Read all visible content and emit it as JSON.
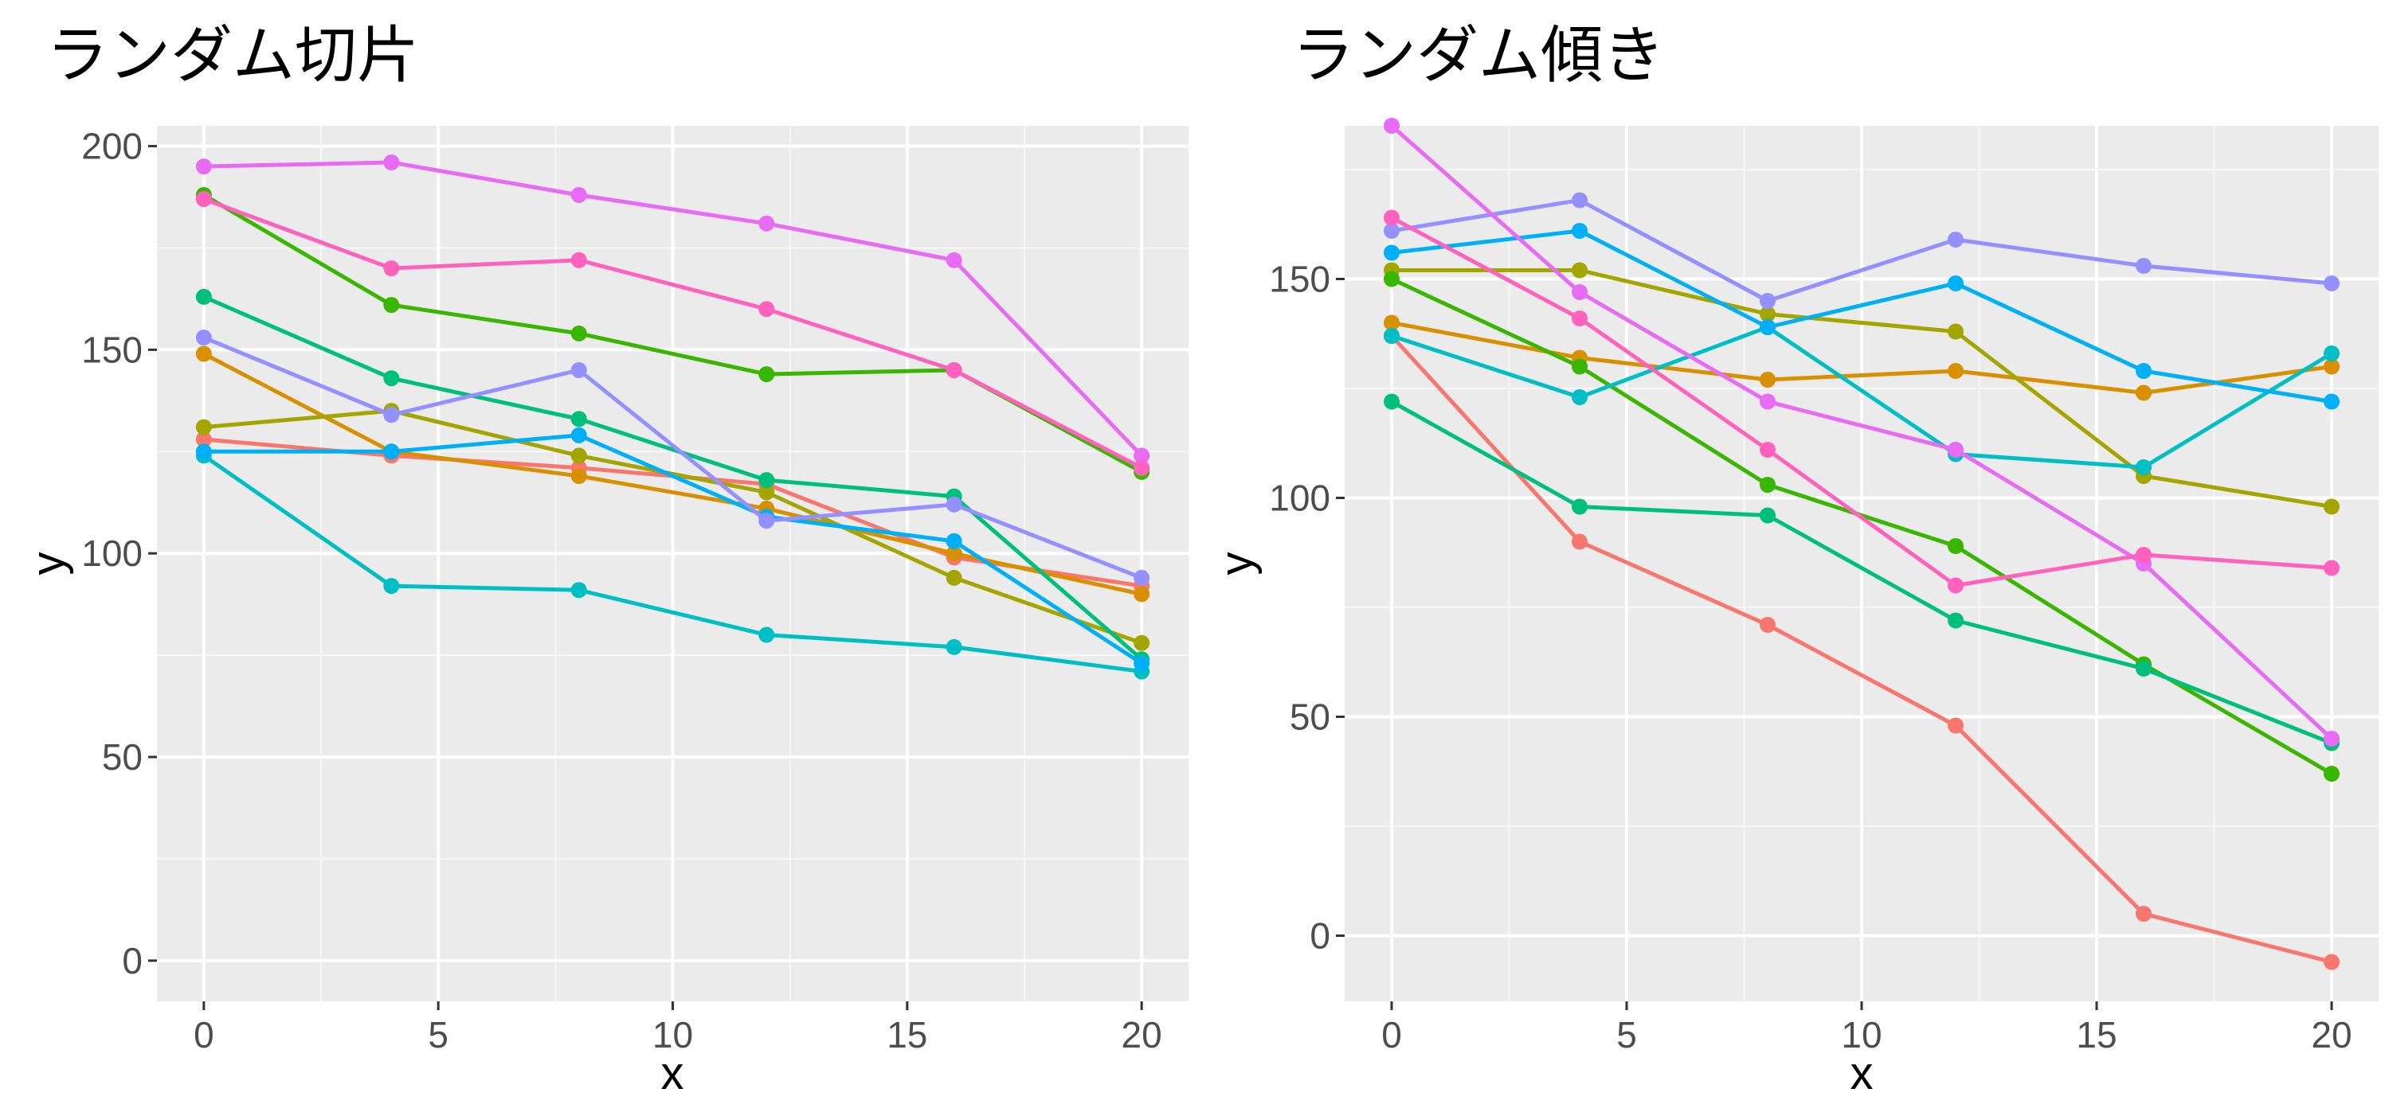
{
  "chart_data": [
    {
      "type": "line",
      "title": "ランダム切片",
      "xlabel": "x",
      "ylabel": "y",
      "xlim": [
        -1,
        21
      ],
      "ylim": [
        -10,
        205
      ],
      "x_ticks": [
        0,
        5,
        10,
        15,
        20
      ],
      "y_ticks": [
        0,
        50,
        100,
        150,
        200
      ],
      "grid": true,
      "legend": "none",
      "x": [
        0,
        4,
        8,
        12,
        16,
        20
      ],
      "series": [
        {
          "color": "#F8766D",
          "values": [
            128,
            124,
            121,
            117,
            99,
            92
          ]
        },
        {
          "color": "#D89000",
          "values": [
            149,
            125,
            119,
            111,
            100,
            90
          ]
        },
        {
          "color": "#A3A500",
          "values": [
            131,
            135,
            124,
            115,
            94,
            78
          ]
        },
        {
          "color": "#39B600",
          "values": [
            188,
            161,
            154,
            144,
            145,
            120
          ]
        },
        {
          "color": "#00BF7D",
          "values": [
            163,
            143,
            133,
            118,
            114,
            74
          ]
        },
        {
          "color": "#00BFC4",
          "values": [
            124,
            92,
            91,
            80,
            77,
            71
          ]
        },
        {
          "color": "#00B0F6",
          "values": [
            125,
            125,
            129,
            109,
            103,
            73
          ]
        },
        {
          "color": "#9590FF",
          "values": [
            153,
            134,
            145,
            108,
            112,
            94
          ]
        },
        {
          "color": "#E76BF3",
          "values": [
            195,
            196,
            188,
            181,
            172,
            124
          ]
        },
        {
          "color": "#FF62BC",
          "values": [
            187,
            170,
            172,
            160,
            145,
            121
          ]
        }
      ]
    },
    {
      "type": "line",
      "title": "ランダム傾き",
      "xlabel": "x",
      "ylabel": "y",
      "xlim": [
        -1,
        21
      ],
      "ylim": [
        -15,
        185
      ],
      "x_ticks": [
        0,
        5,
        10,
        15,
        20
      ],
      "y_ticks": [
        0,
        50,
        100,
        150
      ],
      "grid": true,
      "legend": "none",
      "x": [
        0,
        4,
        8,
        12,
        16,
        20
      ],
      "series": [
        {
          "color": "#F8766D",
          "values": [
            137,
            90,
            71,
            48,
            5,
            -6
          ]
        },
        {
          "color": "#D89000",
          "values": [
            140,
            132,
            127,
            129,
            124,
            130
          ]
        },
        {
          "color": "#A3A500",
          "values": [
            152,
            152,
            142,
            138,
            105,
            98
          ]
        },
        {
          "color": "#39B600",
          "values": [
            150,
            130,
            103,
            89,
            62,
            37
          ]
        },
        {
          "color": "#00BF7D",
          "values": [
            122,
            98,
            96,
            72,
            61,
            44
          ]
        },
        {
          "color": "#00BFC4",
          "values": [
            137,
            123,
            139,
            110,
            107,
            133
          ]
        },
        {
          "color": "#00B0F6",
          "values": [
            156,
            161,
            139,
            149,
            129,
            122
          ]
        },
        {
          "color": "#9590FF",
          "values": [
            161,
            168,
            145,
            159,
            153,
            149
          ]
        },
        {
          "color": "#E76BF3",
          "values": [
            185,
            147,
            122,
            111,
            85,
            45
          ]
        },
        {
          "color": "#FF62BC",
          "values": [
            164,
            141,
            111,
            80,
            87,
            84
          ]
        }
      ]
    }
  ]
}
